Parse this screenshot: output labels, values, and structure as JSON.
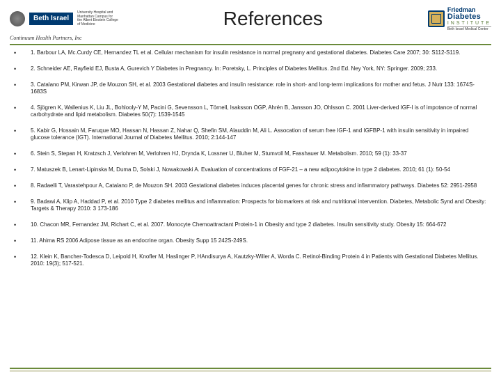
{
  "header": {
    "title": "References",
    "left_logo": {
      "box_text": "Beth Israel",
      "affil_line1": "University Hospital and",
      "affil_line2": "Manhattan Campus for",
      "affil_line3": "the Albert Einstein College",
      "affil_line4": "of Medicine",
      "chp": "Continuum Health Partners, Inc"
    },
    "right_logo": {
      "l1": "Friedman",
      "l2": "Diabetes",
      "l3": "INSTITUTE",
      "l4": "Beth Israel Medical Center"
    }
  },
  "colors": {
    "accent_green": "#6a8a3a",
    "navy": "#003a70",
    "gold": "#d4b05a",
    "text": "#222222",
    "background": "#ffffff"
  },
  "references": [
    "1. Barbour LA, Mc.Curdy CE, Hernandez TL et al. Cellular mechanism for insulin resistance in normal pregnany and gestational diabetes. Diabetes Care 2007; 30: S112-S119.",
    "2. Schneider AE, Rayfield EJ, Busta A, Gurevich Y Diabetes in Pregnancy. In: Poretsky, L. Principles of Diabetes Mellitus. 2nd Ed. Ney York, NY: Springer. 2009; 233.",
    "3. Catalano PM, Kirwan JP, de Mouzon SH, et al. 2003 Gestational diabetes and insulin resistance: role in short- and long-term implications for mother and fetus. J Nutr 133: 1674S-1683S",
    "4. Sjögren K, Wallenius K, Liu JL, Bohlooly-Y M, Pacini G, Sevensson L, Törnell, Isaksson OGP, Ahrén B, Jansson JO, Ohlsson C. 2001 Liver-derived IGF-I is of impotance of normal carbohydrate and lipid metabolism. Diabetes 50(7): 1539-1545",
    "5. Kabir G, Hossain M, Faruque MO, Hassan N, Hassan Z, Nahar Q, Shefin SM, Alauddin M, Ali L. Assocation of serum free IGF-1 and IGFBP-1 with insulin sensitivity in impaired glucose tolerance (IGT). International Journal of Diabetes Mellitus. 2010; 2:144-147",
    "6. Stein S, Stepan H, Kratzsch J, Verlohren M, Verlohren HJ, Drynda K, Lossner U, Bluher M, Stumvoll M, Fasshauer M. Metabolism. 2010; 59 (1): 33-37",
    "7. Matuszek B, Lenart-Lipinska M, Duma D, Solski J, Nowakowski A. Evaluation of concentrations of FGF-21 – a new adipocytokine in type 2 diabetes. 2010; 61 (1): 50-54",
    "8. Radaelli T, Varastehpour A, Catalano P, de Mouzon SH. 2003 Gestational diabetes induces placental genes for chronic stress and inflammatory pathways. Diabetes 52: 2951-2958",
    "9. Badawi A, Klip A, Haddad P, et al. 2010 Type 2 diabetes mellitus and inflammation: Prospects for biomarkers at risk and nutritional intervention. Diabetes, Metabolic Synd and Obesity: Targets & Therapy 2010: 3 173-186",
    "10. Chacon MR, Fernandez JM, Richart C, et al. 2007. Monocyte Chemoattractant Protein-1 in Obesity and type 2 diabetes. Insulin sensitivity study. Obesity 15: 664-672",
    "11. Ahima RS 2006 Adipose tissue as an endocrine organ. Obesity Supp 15 242S-249S.",
    "12. Klein K, Bancher-Todesca D, Leipold H, Knofler M, Haslinger P, HAndisurya A, Kautzky-Willer A, Worda C. Retinol-Binding Protein 4 in Patients with Gestational Diabetes Mellitus. 2010: 19(3); 517-521."
  ]
}
